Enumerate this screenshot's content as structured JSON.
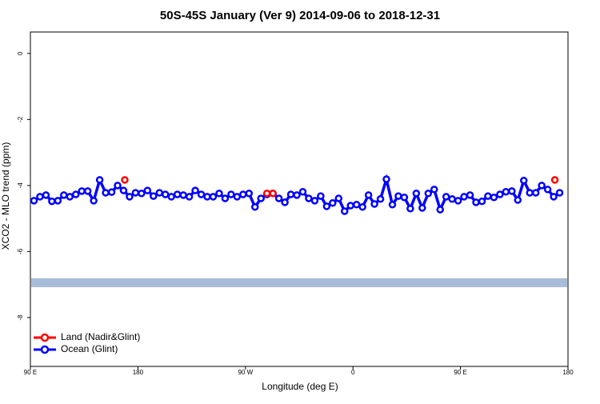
{
  "chart_data": {
    "type": "line",
    "title": "50S-45S January (Ver 9)   2014-09-06 to 2018-12-31",
    "x_label": "Longitude (deg E)",
    "y_label": "XCO2 - MLO trend (ppm)",
    "xlim": [
      90,
      540
    ],
    "xticks": [
      {
        "value": 90,
        "label": "90 E"
      },
      {
        "value": 180,
        "label": "180"
      },
      {
        "value": 270,
        "label": "90 W"
      },
      {
        "value": 360,
        "label": "0"
      },
      {
        "value": 450,
        "label": "90 E"
      },
      {
        "value": 540,
        "label": "180"
      }
    ],
    "ylim": [
      -9.48,
      0.65
    ],
    "yticks": [
      0,
      -2,
      -4,
      -6,
      -8
    ],
    "band": [
      -7.08,
      -6.81
    ],
    "band_color": "#a7bcd9",
    "legend": "bottom-left",
    "series": [
      {
        "name": "Land (Nadir&Glint)",
        "color": "#ff0000",
        "x": [
          169,
          288,
          293,
          529
        ],
        "values": [
          -3.83,
          -4.24,
          -4.24,
          -3.83
        ]
      },
      {
        "name": "Ocean (Glint)",
        "color": "#0000ff",
        "x": [
          93,
          98,
          103,
          108,
          113,
          118,
          123,
          128,
          133,
          138,
          143,
          148,
          153,
          158,
          163,
          168,
          173,
          178,
          183,
          188,
          193,
          198,
          203,
          208,
          213,
          218,
          223,
          228,
          233,
          238,
          243,
          248,
          253,
          258,
          263,
          268,
          273,
          278,
          283,
          288,
          293,
          298,
          303,
          308,
          313,
          318,
          323,
          328,
          333,
          338,
          343,
          348,
          353,
          358,
          363,
          368,
          373,
          378,
          383,
          388,
          393,
          398,
          403,
          408,
          413,
          418,
          423,
          428,
          433,
          438,
          443,
          448,
          453,
          458,
          463,
          468,
          473,
          478,
          483,
          488,
          493,
          498,
          503,
          508,
          513,
          518,
          523,
          528,
          533
        ],
        "values": [
          -4.46,
          -4.34,
          -4.29,
          -4.48,
          -4.46,
          -4.29,
          -4.34,
          -4.27,
          -4.17,
          -4.17,
          -4.46,
          -3.83,
          -4.22,
          -4.2,
          -4.0,
          -4.15,
          -4.34,
          -4.22,
          -4.24,
          -4.15,
          -4.32,
          -4.22,
          -4.27,
          -4.34,
          -4.27,
          -4.29,
          -4.34,
          -4.15,
          -4.27,
          -4.34,
          -4.34,
          -4.24,
          -4.39,
          -4.27,
          -4.34,
          -4.27,
          -4.24,
          -4.65,
          -4.39,
          -4.27,
          -4.24,
          -4.39,
          -4.51,
          -4.27,
          -4.29,
          -4.19,
          -4.39,
          -4.46,
          -4.32,
          -4.63,
          -4.53,
          -4.39,
          -4.78,
          -4.61,
          -4.58,
          -4.65,
          -4.29,
          -4.56,
          -4.41,
          -3.81,
          -4.58,
          -4.32,
          -4.36,
          -4.7,
          -4.24,
          -4.68,
          -4.24,
          -4.12,
          -4.73,
          -4.34,
          -4.41,
          -4.46,
          -4.34,
          -4.29,
          -4.51,
          -4.48,
          -4.32,
          -4.36,
          -4.27,
          -4.19,
          -4.17,
          -4.44,
          -3.85,
          -4.22,
          -4.22,
          -4.0,
          -4.12,
          -4.34,
          -4.22
        ]
      }
    ]
  }
}
